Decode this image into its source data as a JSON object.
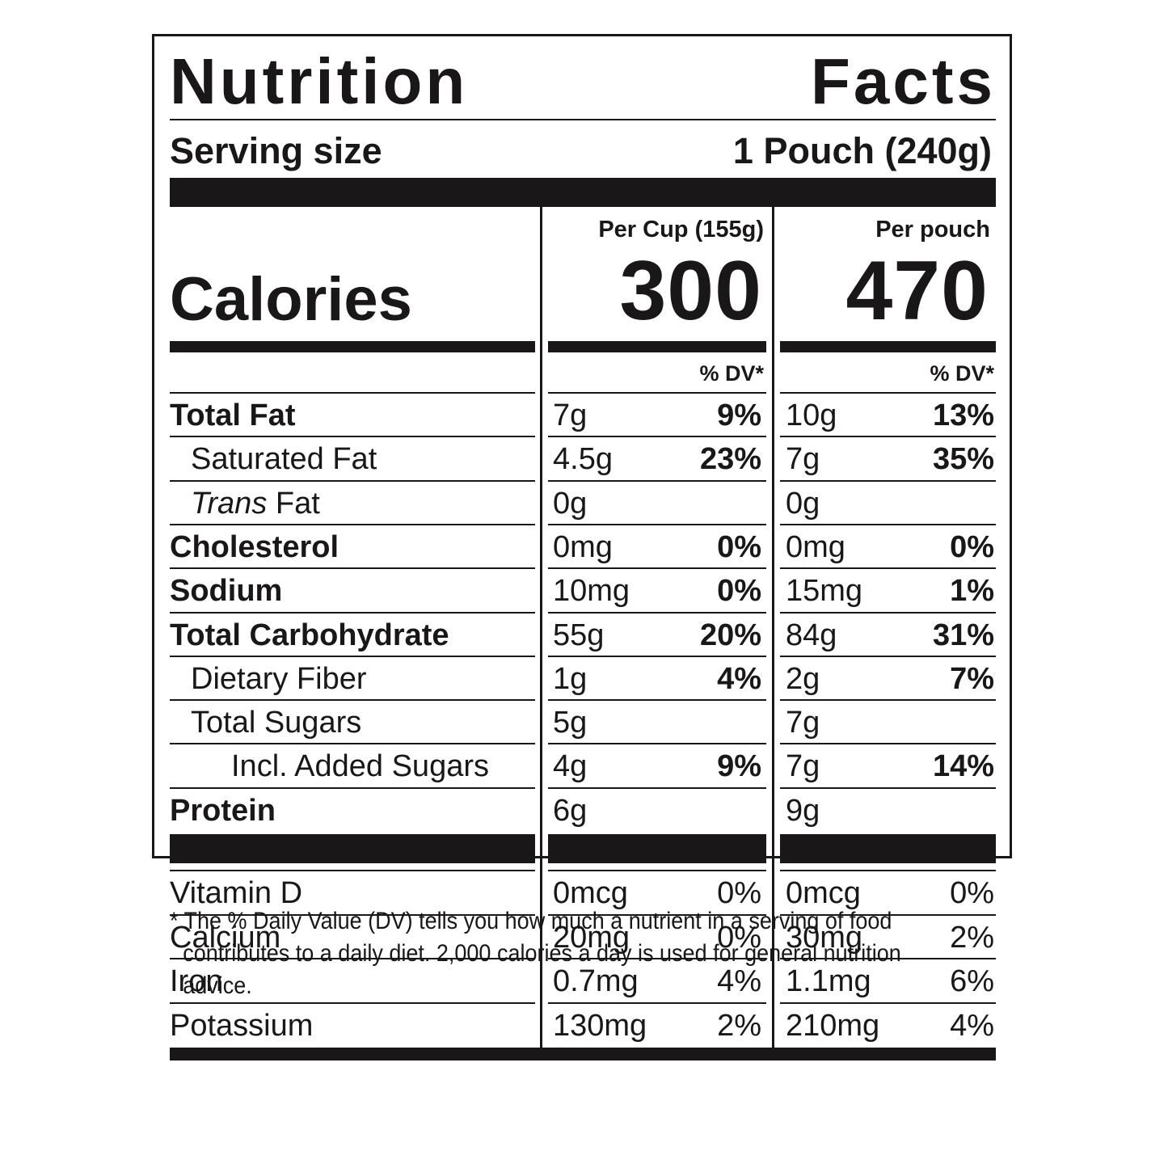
{
  "title": [
    "Nutrition",
    "Facts"
  ],
  "serving": {
    "label": "Serving size",
    "value": "1 Pouch (240g)"
  },
  "columns": [
    {
      "header": "Per Cup (155g)",
      "calories": "300",
      "dv_header": "% DV*"
    },
    {
      "header": "Per pouch",
      "calories": "470",
      "dv_header": "% DV*"
    }
  ],
  "calories_label": "Calories",
  "nutrients": [
    {
      "label": "Total Fat",
      "bold": true,
      "indent": 0,
      "cup_amount": "7g",
      "cup_dv": "9%",
      "pouch_amount": "10g",
      "pouch_dv": "13%"
    },
    {
      "label": "Saturated Fat",
      "bold": false,
      "indent": 1,
      "cup_amount": "4.5g",
      "cup_dv": "23%",
      "pouch_amount": "7g",
      "pouch_dv": "35%"
    },
    {
      "label_italic": "Trans",
      "label_rest": " Fat",
      "bold": false,
      "indent": 1,
      "cup_amount": "0g",
      "cup_dv": "",
      "pouch_amount": "0g",
      "pouch_dv": ""
    },
    {
      "label": "Cholesterol",
      "bold": true,
      "indent": 0,
      "cup_amount": "0mg",
      "cup_dv": "0%",
      "pouch_amount": "0mg",
      "pouch_dv": "0%"
    },
    {
      "label": "Sodium",
      "bold": true,
      "indent": 0,
      "cup_amount": "10mg",
      "cup_dv": "0%",
      "pouch_amount": "15mg",
      "pouch_dv": "1%"
    },
    {
      "label": "Total Carbohydrate",
      "bold": true,
      "indent": 0,
      "cup_amount": "55g",
      "cup_dv": "20%",
      "pouch_amount": "84g",
      "pouch_dv": "31%"
    },
    {
      "label": "Dietary Fiber",
      "bold": false,
      "indent": 1,
      "cup_amount": "1g",
      "cup_dv": "4%",
      "pouch_amount": "2g",
      "pouch_dv": "7%"
    },
    {
      "label": "Total Sugars",
      "bold": false,
      "indent": 1,
      "cup_amount": "5g",
      "cup_dv": "",
      "pouch_amount": "7g",
      "pouch_dv": ""
    },
    {
      "label": "Incl. Added Sugars",
      "bold": false,
      "indent": 2,
      "cup_amount": "4g",
      "cup_dv": "9%",
      "pouch_amount": "7g",
      "pouch_dv": "14%"
    },
    {
      "label": "Protein",
      "bold": true,
      "indent": 0,
      "cup_amount": "6g",
      "cup_dv": "",
      "pouch_amount": "9g",
      "pouch_dv": ""
    }
  ],
  "micronutrients": [
    {
      "label": "Vitamin D",
      "cup_amount": "0mcg",
      "cup_dv": "0%",
      "pouch_amount": "0mcg",
      "pouch_dv": "0%"
    },
    {
      "label": "Calcium",
      "cup_amount": "20mg",
      "cup_dv": "0%",
      "pouch_amount": "30mg",
      "pouch_dv": "2%"
    },
    {
      "label": "Iron",
      "cup_amount": "0.7mg",
      "cup_dv": "4%",
      "pouch_amount": "1.1mg",
      "pouch_dv": "6%"
    },
    {
      "label": "Potassium",
      "cup_amount": "130mg",
      "cup_dv": "2%",
      "pouch_amount": "210mg",
      "pouch_dv": "4%"
    }
  ],
  "footnote": [
    "* The % Daily Value (DV) tells you how much a nutrient in a serving of food",
    "contributes to a daily diet. 2,000 calories a day is used for general nutrition advice."
  ]
}
